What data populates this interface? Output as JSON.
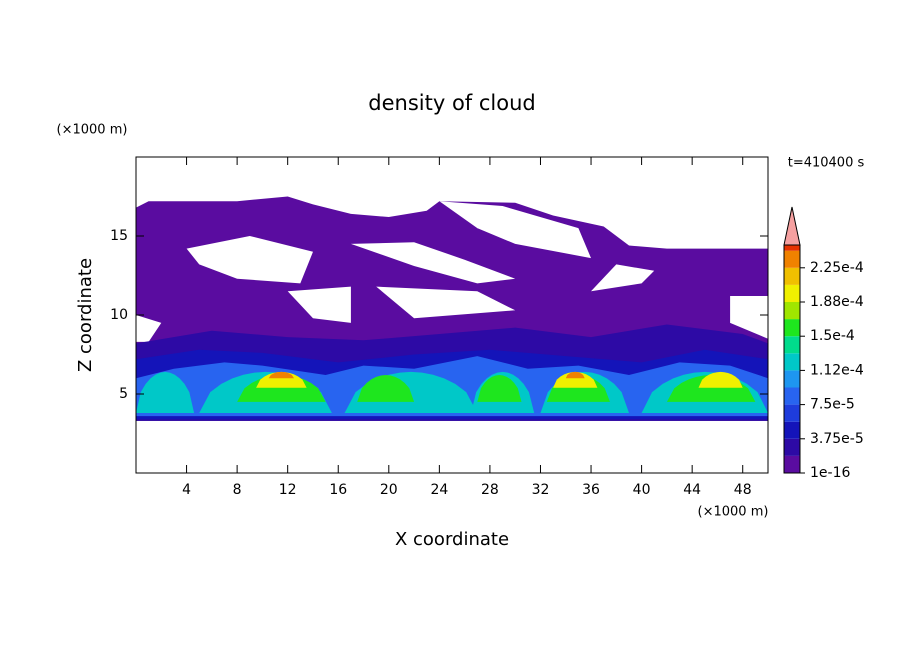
{
  "chart_data": {
    "type": "contour",
    "title": "density of cloud",
    "xlabel": "X coordinate",
    "ylabel": "Z coordinate",
    "xunit": "(×1000 m)",
    "yunit": "(×1000 m)",
    "annotation": "t=410400 s",
    "xlim": [
      0,
      50
    ],
    "xticks": [
      4,
      8,
      12,
      16,
      20,
      24,
      28,
      32,
      36,
      40,
      44,
      48
    ],
    "ylim": [
      0,
      20
    ],
    "yticks": [
      5,
      10,
      15
    ],
    "colorbar": {
      "clim": [
        0,
        0.00025
      ],
      "levels": [
        1e-16,
        1.875e-05,
        3.75e-05,
        5.625e-05,
        7.5e-05,
        9.375e-05,
        0.0001125,
        0.00013125,
        0.00015,
        0.00016875,
        0.0001875,
        0.00020625,
        0.000225,
        0.00024375
      ],
      "colors": [
        "#5a0ca0",
        "#2d0aa5",
        "#1414b9",
        "#1e3cdc",
        "#2864f0",
        "#1e96f0",
        "#00c8c8",
        "#00dc8c",
        "#1ee61e",
        "#a0e600",
        "#f0f000",
        "#f0c000",
        "#f08200",
        "#e63200"
      ],
      "over_color": "#f5a0a0",
      "ticks": [
        {
          "value": 1e-16,
          "label": "1e-16"
        },
        {
          "value": 3.75e-05,
          "label": "3.75e-5"
        },
        {
          "value": 7.5e-05,
          "label": "7.5e-5"
        },
        {
          "value": 0.0001125,
          "label": "1.12e-4"
        },
        {
          "value": 0.00015,
          "label": "1.5e-4"
        },
        {
          "value": 0.0001875,
          "label": "1.88e-4"
        },
        {
          "value": 0.000225,
          "label": "2.25e-4"
        }
      ]
    }
  }
}
